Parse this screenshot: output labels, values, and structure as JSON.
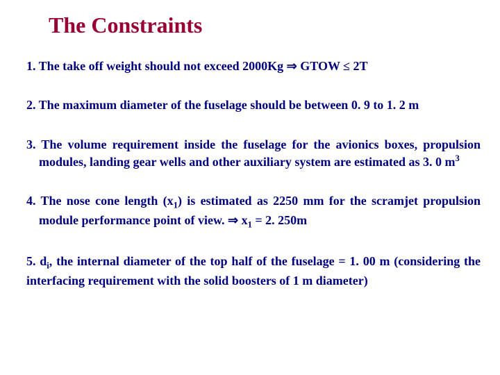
{
  "title": "The Constraints",
  "items": {
    "i1_pre": "1. The take off weight should not exceed 2000Kg ",
    "i1_arrow": "⇒",
    "i1_mid": " GTOW ",
    "i1_le": "≤",
    "i1_post": " 2T",
    "i2": "2. The maximum diameter of the fuselage should be between 0. 9 to 1. 2 m",
    "i3": "3.   The volume requirement inside the fuselage for the avionics boxes, propulsion modules, landing gear wells and other auxiliary system are estimated as 3. 0 m",
    "i3_sup": "3",
    "i4_pre": "4.   The nose cone length (x",
    "i4_sub1": "1",
    "i4_mid": ") is estimated as 2250 mm for the scramjet propulsion module performance point of view. ",
    "i4_arrow": "⇒",
    "i4_x": " x",
    "i4_sub2": "1",
    "i4_post": " =    2. 250m",
    "i5_pre": "5. d",
    "i5_sub": "i",
    "i5_post": ", the internal diameter of the top half of the fuselage =   1. 00 m  (considering the interfacing requirement with the solid boosters of 1 m diameter)"
  },
  "colors": {
    "title": "#990033",
    "body": "#000080",
    "background": "#ffffff"
  },
  "typography": {
    "title_fontsize": 32,
    "body_fontsize": 18,
    "font_family": "Times New Roman"
  }
}
